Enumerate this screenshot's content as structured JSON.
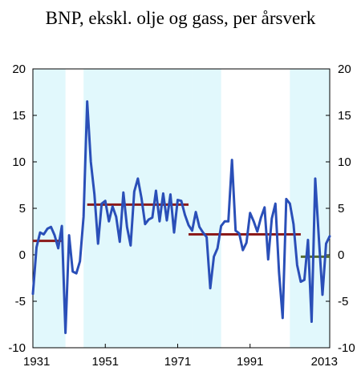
{
  "chart_data": {
    "type": "line",
    "title": "BNP, ekskl. olje og gass, per årsverk",
    "xlabel": "",
    "ylabel": "",
    "xlim": [
      1931,
      2013
    ],
    "ylim": [
      -10,
      20
    ],
    "yticks": [
      "-10",
      "-5",
      "0",
      "5",
      "10",
      "15",
      "20"
    ],
    "xticks": [
      "1931",
      "1951",
      "1971",
      "1991",
      "2013"
    ],
    "xtick_values": [
      1931,
      1951,
      1971,
      1991,
      2013
    ],
    "grid": false,
    "legend": "none",
    "colors": {
      "line": "#2a4fb8",
      "band": "#c8f2fa",
      "avg_pre": "#8b1a1a",
      "avg_post": "#556b2f"
    },
    "series": [
      {
        "x": [
          1931,
          1932,
          1933,
          1934,
          1935,
          1936,
          1937,
          1938,
          1939,
          1940,
          1941,
          1942,
          1943,
          1944,
          1945,
          1946,
          1947,
          1948,
          1949,
          1950,
          1951,
          1952,
          1953,
          1954,
          1955,
          1956,
          1957,
          1958,
          1959,
          1960,
          1961,
          1962,
          1963,
          1964,
          1965,
          1966,
          1967,
          1968,
          1969,
          1970,
          1971,
          1972,
          1973,
          1974,
          1975,
          1976,
          1977,
          1978,
          1979,
          1980,
          1981,
          1982,
          1983,
          1984,
          1985,
          1986,
          1987,
          1988,
          1989,
          1990,
          1991,
          1992,
          1993,
          1994,
          1995,
          1996,
          1997,
          1998,
          1999,
          2000,
          2001,
          2002,
          2003,
          2004,
          2005,
          2006,
          2007,
          2008,
          2009,
          2010,
          2011,
          2012,
          2013
        ],
        "values": [
          -4.2,
          0.8,
          2.4,
          2.2,
          2.8,
          3.0,
          2.1,
          0.7,
          3.1,
          -8.4,
          2.1,
          -1.8,
          -2.0,
          -0.7,
          4.1,
          16.5,
          10.0,
          6.5,
          1.2,
          5.5,
          5.8,
          3.6,
          5.2,
          4.1,
          1.4,
          6.7,
          3.0,
          1.0,
          6.8,
          8.2,
          6.1,
          3.3,
          3.8,
          4.0,
          6.9,
          3.6,
          6.6,
          3.7,
          6.5,
          2.4,
          5.9,
          5.8,
          4.3,
          3.2,
          2.6,
          4.6,
          3.0,
          2.4,
          1.9,
          -3.6,
          -0.2,
          0.7,
          3.1,
          3.6,
          3.6,
          10.2,
          2.6,
          2.3,
          0.5,
          1.3,
          4.5,
          3.6,
          2.5,
          4.0,
          5.1,
          -0.5,
          3.9,
          5.5,
          -1.9,
          -6.8,
          6.0,
          5.5,
          3.3,
          -1.1,
          -2.9,
          -2.7,
          1.6,
          -7.2,
          8.2,
          1.8,
          -4.3,
          1.2,
          2.0
        ]
      }
    ],
    "averages": [
      {
        "x0": 1931,
        "x1": 1939,
        "value": 1.5
      },
      {
        "x0": 1946,
        "x1": 1974,
        "value": 5.4
      },
      {
        "x0": 1974,
        "x1": 2005,
        "value": 2.2
      },
      {
        "x0": 2005,
        "x1": 2013,
        "value": -0.2
      }
    ],
    "bands": [
      [
        1931,
        1940
      ],
      [
        1945,
        1975
      ],
      [
        1975,
        1983
      ],
      [
        2002,
        2013
      ]
    ]
  }
}
